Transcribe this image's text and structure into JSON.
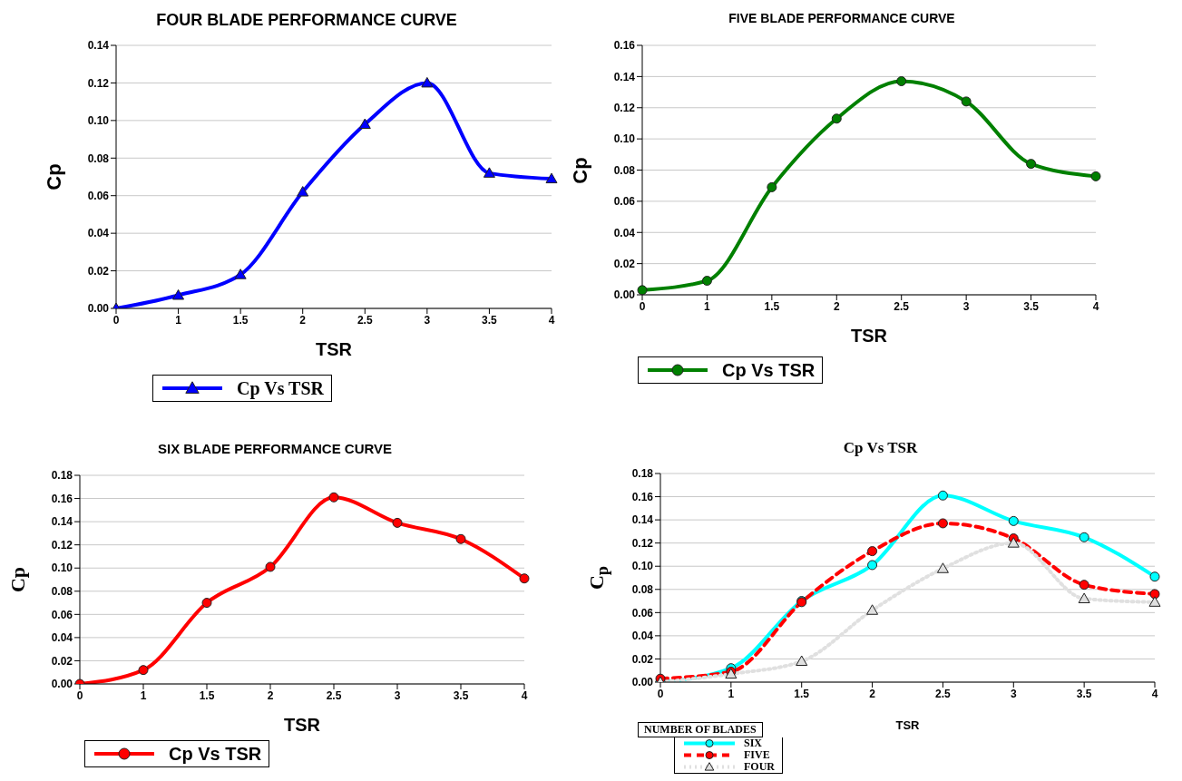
{
  "chart_data": [
    {
      "type": "line",
      "title": "FOUR BLADE PERFORMANCE CURVE",
      "xlabel": "TSR",
      "ylabel": "Cp",
      "categories": [
        "0",
        "1",
        "1.5",
        "2",
        "2.5",
        "3",
        "3.5",
        "4"
      ],
      "series": [
        {
          "name": "Cp Vs TSR",
          "color": "#0000ff",
          "marker": "triangle",
          "values": [
            0,
            0.007,
            0.018,
            0.062,
            0.098,
            0.12,
            0.072,
            0.069
          ]
        }
      ],
      "ylim": [
        0,
        0.14
      ],
      "yticks": [
        {
          "value": 0,
          "label": "0.00"
        },
        {
          "value": 0.02,
          "label": "0.02"
        },
        {
          "value": 0.04,
          "label": "0.04"
        },
        {
          "value": 0.06,
          "label": "0.06"
        },
        {
          "value": 0.08,
          "label": "0.08"
        },
        {
          "value": 0.1,
          "label": "0.10"
        },
        {
          "value": 0.12,
          "label": "0.12"
        },
        {
          "value": 0.14,
          "label": "0.14"
        }
      ],
      "grid": "y",
      "legend": "bottom left",
      "line_style": "solid"
    },
    {
      "type": "line",
      "title": "FIVE BLADE PERFORMANCE CURVE",
      "xlabel": "TSR",
      "ylabel": "Cp",
      "categories": [
        "0",
        "1",
        "1.5",
        "2",
        "2.5",
        "3",
        "3.5",
        "4"
      ],
      "series": [
        {
          "name": "Cp Vs TSR",
          "color": "#008000",
          "marker": "circle",
          "values": [
            0.003,
            0.009,
            0.069,
            0.113,
            0.137,
            0.124,
            0.084,
            0.076
          ]
        }
      ],
      "ylim": [
        0,
        0.16
      ],
      "yticks": [
        {
          "value": 0,
          "label": "0.00"
        },
        {
          "value": 0.02,
          "label": "0.02"
        },
        {
          "value": 0.04,
          "label": "0.04"
        },
        {
          "value": 0.06,
          "label": "0.06"
        },
        {
          "value": 0.08,
          "label": "0.08"
        },
        {
          "value": 0.1,
          "label": "0.10"
        },
        {
          "value": 0.12,
          "label": "0.12"
        },
        {
          "value": 0.14,
          "label": "0.14"
        },
        {
          "value": 0.16,
          "label": "0.16"
        }
      ],
      "grid": "y",
      "legend": "bottom left",
      "line_style": "solid"
    },
    {
      "type": "line",
      "title": "SIX BLADE PERFORMANCE CURVE",
      "xlabel": "TSR",
      "ylabel": "Cp",
      "categories": [
        "0",
        "1",
        "1.5",
        "2",
        "2.5",
        "3",
        "3.5",
        "4"
      ],
      "series": [
        {
          "name": "Cp Vs TSR",
          "color": "#ff0000",
          "marker": "circle",
          "values": [
            0,
            0.012,
            0.07,
            0.101,
            0.161,
            0.139,
            0.125,
            0.091
          ]
        }
      ],
      "ylim": [
        0,
        0.18
      ],
      "yticks": [
        {
          "value": 0,
          "label": "0.00"
        },
        {
          "value": 0.02,
          "label": "0.02"
        },
        {
          "value": 0.04,
          "label": "0.04"
        },
        {
          "value": 0.06,
          "label": "0.06"
        },
        {
          "value": 0.08,
          "label": "0.08"
        },
        {
          "value": 0.1,
          "label": "0.10"
        },
        {
          "value": 0.12,
          "label": "0.12"
        },
        {
          "value": 0.14,
          "label": "0.14"
        },
        {
          "value": 0.16,
          "label": "0.16"
        },
        {
          "value": 0.18,
          "label": "0.18"
        }
      ],
      "grid": "y",
      "legend": "bottom left",
      "line_style": "solid"
    },
    {
      "type": "line",
      "title": "Cp Vs TSR",
      "xlabel": "TSR",
      "ylabel": "C$_{p}$",
      "legend_title": "NUMBER OF BLADES",
      "categories": [
        "0",
        "1",
        "1.5",
        "2",
        "2.5",
        "3",
        "3.5",
        "4"
      ],
      "series": [
        {
          "name": "SIX",
          "color": "#00ffff",
          "marker": "circle",
          "line_style": "solid",
          "values": [
            0,
            0.012,
            0.07,
            0.101,
            0.161,
            0.139,
            0.125,
            0.091
          ]
        },
        {
          "name": "FIVE",
          "color": "#ff0000",
          "marker": "circle",
          "line_style": "dashed",
          "values": [
            0.003,
            0.009,
            0.069,
            0.113,
            0.137,
            0.124,
            0.084,
            0.076
          ]
        },
        {
          "name": "FOUR",
          "color": "#e0e0e0",
          "marker": "triangle",
          "line_style": "dotted",
          "values": [
            0,
            0.007,
            0.018,
            0.062,
            0.098,
            0.12,
            0.072,
            0.069
          ]
        }
      ],
      "ylim": [
        0,
        0.18
      ],
      "yticks": [
        {
          "value": 0,
          "label": "0.00"
        },
        {
          "value": 0.02,
          "label": "0.02"
        },
        {
          "value": 0.04,
          "label": "0.04"
        },
        {
          "value": 0.06,
          "label": "0.06"
        },
        {
          "value": 0.08,
          "label": "0.08"
        },
        {
          "value": 0.1,
          "label": "0.10"
        },
        {
          "value": 0.12,
          "label": "0.12"
        },
        {
          "value": 0.14,
          "label": "0.14"
        },
        {
          "value": 0.16,
          "label": "0.16"
        },
        {
          "value": 0.18,
          "label": "0.18"
        }
      ],
      "grid": "y",
      "legend": "bottom left"
    }
  ]
}
